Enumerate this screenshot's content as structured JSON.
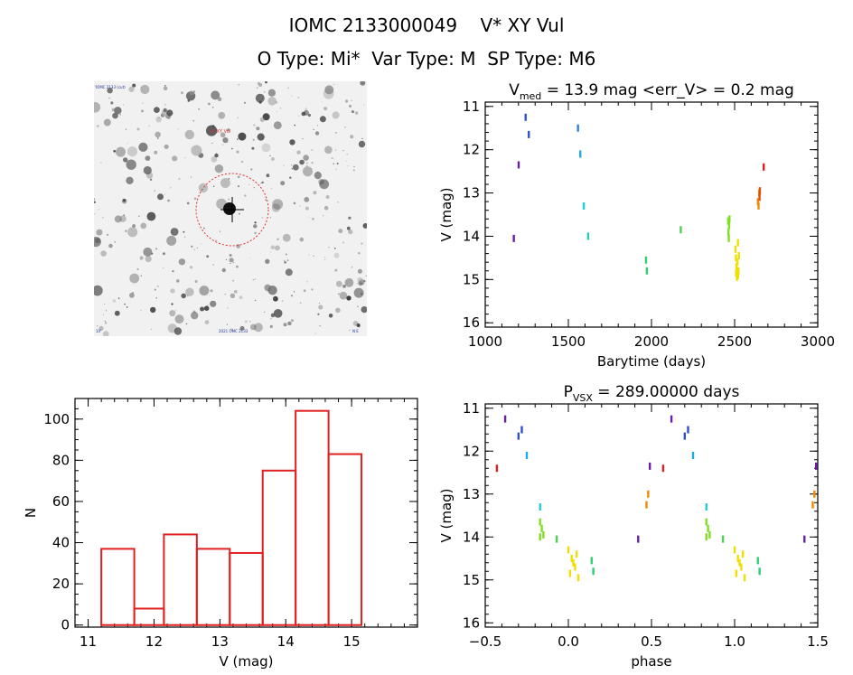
{
  "header": {
    "line1": "IOMC 2133000049    V* XY Vul",
    "line2": "O Type: Mi*  Var Type: M  SP Type: M6"
  },
  "sky_image": {
    "label_top_left": "IOMC 2133 (cut)",
    "target_label": "V* XY Vul",
    "label_bottom_left": "10'",
    "label_bottom_center": "2021 OMC 2133",
    "label_bottom_right": "N E",
    "circle_color": "#e03030"
  },
  "chart_data": [
    {
      "id": "lightcurve",
      "type": "scatter",
      "title_parts": {
        "prefix": "V",
        "sub": "med",
        "rest": " = 13.9 mag <err_V> = 0.2 mag"
      },
      "xlabel": "Barytime (days)",
      "ylabel": "V (mag)",
      "xlim": [
        1000,
        3000
      ],
      "ylim": [
        16.1,
        10.9
      ],
      "y_inverted": true,
      "xticks": [
        1000,
        1500,
        2000,
        2500,
        3000
      ],
      "yticks": [
        11,
        12,
        13,
        14,
        15,
        16
      ],
      "series": [
        {
          "color": "#6a1fa0",
          "points": [
            [
              1172,
              14.05
            ],
            [
              1201,
              12.35
            ]
          ]
        },
        {
          "color": "#3050d8",
          "points": [
            [
              1243,
              11.25
            ],
            [
              1262,
              11.65
            ]
          ]
        },
        {
          "color": "#3080e0",
          "points": [
            [
              1558,
              11.5
            ]
          ]
        },
        {
          "color": "#20a8e8",
          "points": [
            [
              1572,
              12.1
            ]
          ]
        },
        {
          "color": "#20d0d8",
          "points": [
            [
              1593,
              13.3
            ]
          ]
        },
        {
          "color": "#20d0b0",
          "points": [
            [
              1619,
              14.0
            ]
          ]
        },
        {
          "color": "#30d070",
          "points": [
            [
              1967,
              14.55
            ],
            [
              1972,
              14.8
            ]
          ]
        },
        {
          "color": "#50d050",
          "points": [
            [
              2176,
              13.85
            ]
          ]
        },
        {
          "color": "#80e020",
          "points": [
            [
              2461,
              13.65
            ],
            [
              2463,
              13.9
            ],
            [
              2465,
              14.05
            ],
            [
              2467,
              13.75
            ],
            [
              2469,
              13.6
            ]
          ]
        },
        {
          "color": "#f0e000",
          "points": [
            [
              2505,
              14.3
            ],
            [
              2508,
              14.5
            ],
            [
              2511,
              14.7
            ],
            [
              2514,
              14.95
            ],
            [
              2517,
              14.6
            ],
            [
              2520,
              14.15
            ],
            [
              2523,
              14.8
            ],
            [
              2526,
              14.45
            ],
            [
              2509,
              14.85
            ],
            [
              2521,
              14.9
            ]
          ]
        },
        {
          "color": "#f08a00",
          "points": [
            [
              2640,
              13.2
            ],
            [
              2644,
              13.3
            ],
            [
              2648,
              13.0
            ]
          ]
        },
        {
          "color": "#e05010",
          "points": [
            [
              2652,
              12.95
            ],
            [
              2650,
              13.1
            ]
          ]
        },
        {
          "color": "#e02020",
          "points": [
            [
              2675,
              12.4
            ]
          ]
        }
      ]
    },
    {
      "id": "histogram",
      "type": "bar",
      "xlabel": "V (mag)",
      "ylabel": "N",
      "xlim": [
        10.8,
        16.0
      ],
      "ylim": [
        -1,
        110
      ],
      "xticks": [
        11,
        12,
        13,
        14,
        15
      ],
      "yticks": [
        0,
        20,
        40,
        60,
        80,
        100
      ],
      "bin_edges": [
        11.2,
        11.7,
        12.2,
        12.7,
        13.2,
        13.7,
        14.2,
        14.7,
        15.2
      ],
      "bar_edges_plot": [
        11.2,
        11.7,
        12.15,
        12.65,
        13.15,
        13.65,
        14.15,
        14.65,
        15.15
      ],
      "values": [
        37,
        8,
        44,
        37,
        35,
        75,
        104,
        83
      ],
      "bar_color": "#e02020"
    },
    {
      "id": "phased",
      "type": "scatter",
      "title_parts": {
        "prefix": "P",
        "sub": "VSX",
        "rest": " = 289.00000 days"
      },
      "xlabel": "phase",
      "ylabel": "V (mag)",
      "xlim": [
        -0.5,
        1.5
      ],
      "ylim": [
        16.1,
        10.9
      ],
      "y_inverted": true,
      "xticks": [
        -0.5,
        0.0,
        0.5,
        1.0,
        1.5
      ],
      "xtick_labels": [
        "−0.5",
        "0.0",
        "0.5",
        "1.0",
        "1.5"
      ],
      "yticks": [
        11,
        12,
        13,
        14,
        15,
        16
      ],
      "series": [
        {
          "color": "#e02020",
          "points": [
            [
              -0.43,
              12.4
            ],
            [
              0.57,
              12.4
            ]
          ]
        },
        {
          "color": "#6a1fa0",
          "points": [
            [
              -0.38,
              11.25
            ],
            [
              0.62,
              11.25
            ],
            [
              0.42,
              14.05
            ],
            [
              1.42,
              14.05
            ],
            [
              0.49,
              12.35
            ],
            [
              1.49,
              12.35
            ]
          ]
        },
        {
          "color": "#3050d8",
          "points": [
            [
              -0.3,
              11.65
            ],
            [
              0.7,
              11.65
            ],
            [
              -0.28,
              11.5
            ],
            [
              0.72,
              11.5
            ]
          ]
        },
        {
          "color": "#20a8e8",
          "points": [
            [
              -0.25,
              12.1
            ],
            [
              0.75,
              12.1
            ]
          ]
        },
        {
          "color": "#20d0d8",
          "points": [
            [
              -0.17,
              13.3
            ],
            [
              0.83,
              13.3
            ]
          ]
        },
        {
          "color": "#80e020",
          "points": [
            [
              -0.17,
              13.65
            ],
            [
              -0.16,
              13.8
            ],
            [
              -0.15,
              13.95
            ],
            [
              -0.17,
              14.0
            ],
            [
              0.83,
              13.65
            ],
            [
              0.84,
              13.8
            ],
            [
              0.85,
              13.95
            ],
            [
              0.83,
              14.0
            ]
          ]
        },
        {
          "color": "#50d050",
          "points": [
            [
              -0.07,
              14.05
            ],
            [
              0.93,
              14.05
            ]
          ]
        },
        {
          "color": "#f0e000",
          "points": [
            [
              0.0,
              14.3
            ],
            [
              0.02,
              14.5
            ],
            [
              0.04,
              14.7
            ],
            [
              0.06,
              14.95
            ],
            [
              0.03,
              14.6
            ],
            [
              0.01,
              14.85
            ],
            [
              0.05,
              14.4
            ],
            [
              1.0,
              14.3
            ],
            [
              1.02,
              14.5
            ],
            [
              1.04,
              14.7
            ],
            [
              1.06,
              14.95
            ],
            [
              1.03,
              14.6
            ],
            [
              1.01,
              14.85
            ],
            [
              1.05,
              14.4
            ]
          ]
        },
        {
          "color": "#30d070",
          "points": [
            [
              0.14,
              14.55
            ],
            [
              0.15,
              14.8
            ],
            [
              1.14,
              14.55
            ],
            [
              1.15,
              14.8
            ]
          ]
        },
        {
          "color": "#f08a00",
          "points": [
            [
              0.47,
              13.25
            ],
            [
              1.47,
              13.25
            ],
            [
              0.48,
              13.0
            ],
            [
              1.48,
              13.0
            ]
          ]
        }
      ]
    }
  ]
}
